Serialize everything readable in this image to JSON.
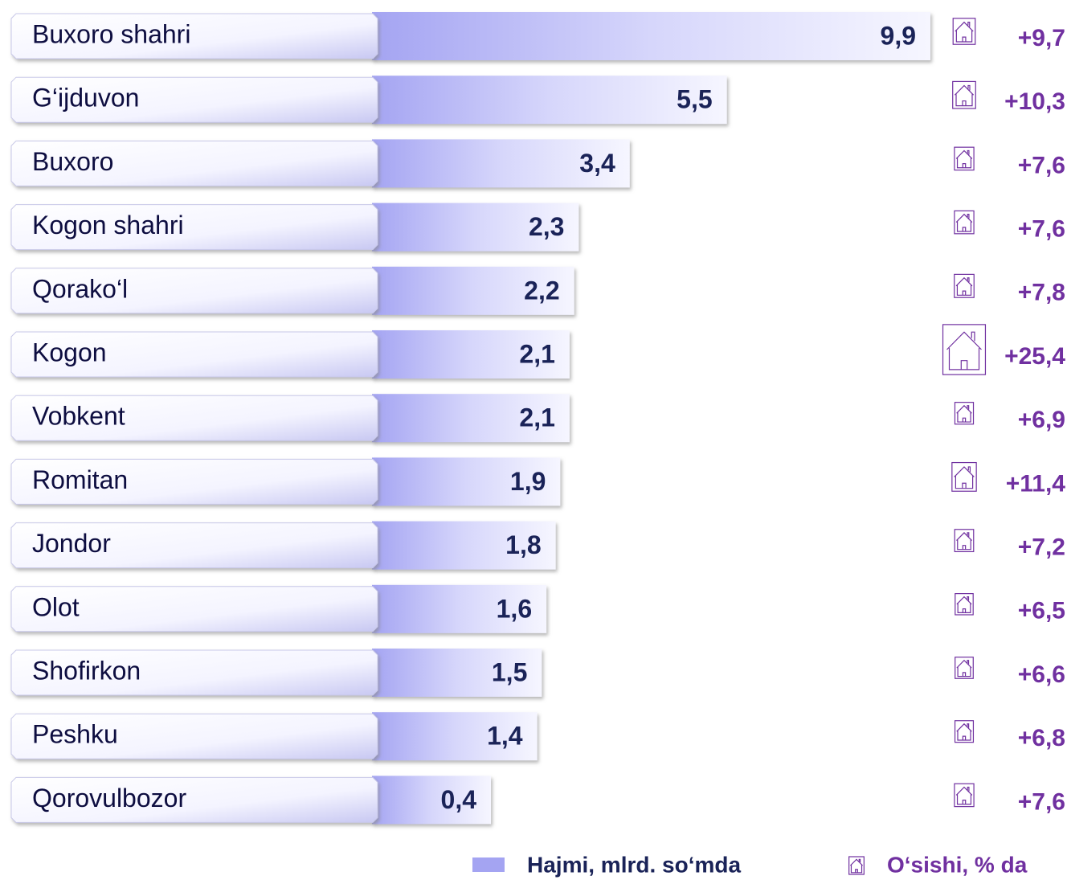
{
  "chart_data": {
    "type": "bar",
    "orientation": "horizontal",
    "categories": [
      "Buxoro  shahri",
      "G‘ijduvon",
      "Buxoro",
      "Kogon shahri",
      "Qorako‘l",
      "Kogon",
      "Vobkent",
      "Romitan",
      "Jondor",
      "Olot",
      "Shofirkon",
      "Peshku",
      "Qorovulbozor"
    ],
    "series": [
      {
        "name": "Hajmi, mlrd. so‘mda",
        "color": "#a4a4f2",
        "values": [
          9.9,
          5.5,
          3.4,
          2.3,
          2.2,
          2.1,
          2.1,
          1.9,
          1.8,
          1.6,
          1.5,
          1.4,
          0.4
        ],
        "value_labels": [
          "9,9",
          "5,5",
          "3,4",
          "2,3",
          "2,2",
          "2,1",
          "2,1",
          "1,9",
          "1,8",
          "1,6",
          "1,5",
          "1,4",
          "0,4"
        ]
      },
      {
        "name": "O‘sishi, % da",
        "color": "#7030a0",
        "values": [
          9.7,
          10.3,
          7.6,
          7.6,
          7.8,
          25.4,
          6.9,
          11.4,
          7.2,
          6.5,
          6.6,
          6.8,
          7.6
        ],
        "value_labels": [
          "+9,7",
          "+10,3",
          "+7,6",
          "+7,6",
          "+7,8",
          "+25,4",
          "+6,9",
          "+11,4",
          "+7,2",
          "+6,5",
          "+6,6",
          "+6,8",
          "+7,6"
        ]
      }
    ]
  }
}
